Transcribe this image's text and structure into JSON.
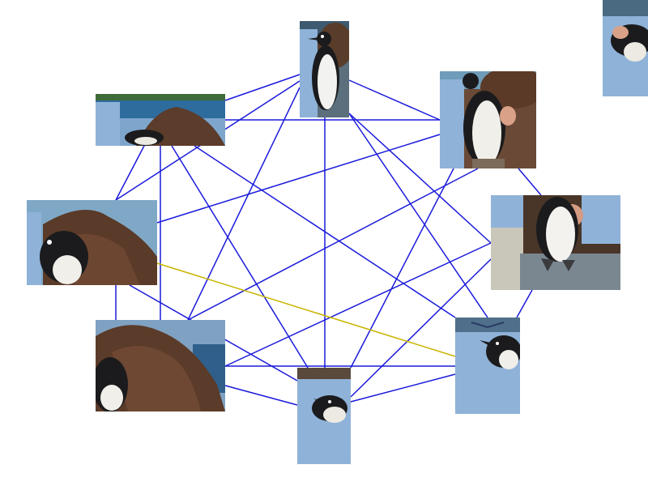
{
  "graph": {
    "edge_color": "#1a1adb",
    "highlight_color": "#c8b400",
    "nodes": [
      {
        "id": "n0",
        "view": "penguin-standing-front"
      },
      {
        "id": "n1",
        "view": "penguin-standing-hand"
      },
      {
        "id": "n2",
        "view": "penguin-standing-rock"
      },
      {
        "id": "n3",
        "view": "penguin-head-blue-shirt"
      },
      {
        "id": "n4",
        "view": "penguin-head-shirt-close"
      },
      {
        "id": "n5",
        "view": "rock-penguin-head"
      },
      {
        "id": "n6",
        "view": "rock-penguin-closeup"
      },
      {
        "id": "n7",
        "view": "rock-sea-penguin"
      },
      {
        "id": "n8",
        "view": "penguin-cropped-corner"
      }
    ],
    "edges": [
      [
        "n0",
        "n1"
      ],
      [
        "n0",
        "n2"
      ],
      [
        "n0",
        "n3"
      ],
      [
        "n0",
        "n7"
      ],
      [
        "n0",
        "n6"
      ],
      [
        "n0",
        "n5"
      ],
      [
        "n0",
        "n4"
      ],
      [
        "n1",
        "n7"
      ],
      [
        "n1",
        "n6"
      ],
      [
        "n1",
        "n2"
      ],
      [
        "n1",
        "n5"
      ],
      [
        "n1",
        "n4"
      ],
      [
        "n2",
        "n3"
      ],
      [
        "n2",
        "n5"
      ],
      [
        "n2",
        "n4"
      ],
      [
        "n3",
        "n4"
      ],
      [
        "n3",
        "n5"
      ],
      [
        "n3",
        "n7"
      ],
      [
        "n4",
        "n5"
      ],
      [
        "n4",
        "n7"
      ],
      [
        "n4",
        "n6"
      ],
      [
        "n5",
        "n6"
      ],
      [
        "n5",
        "n7"
      ],
      [
        "n6",
        "n7"
      ]
    ],
    "highlighted_edges": [
      [
        "n6",
        "n3"
      ]
    ]
  }
}
